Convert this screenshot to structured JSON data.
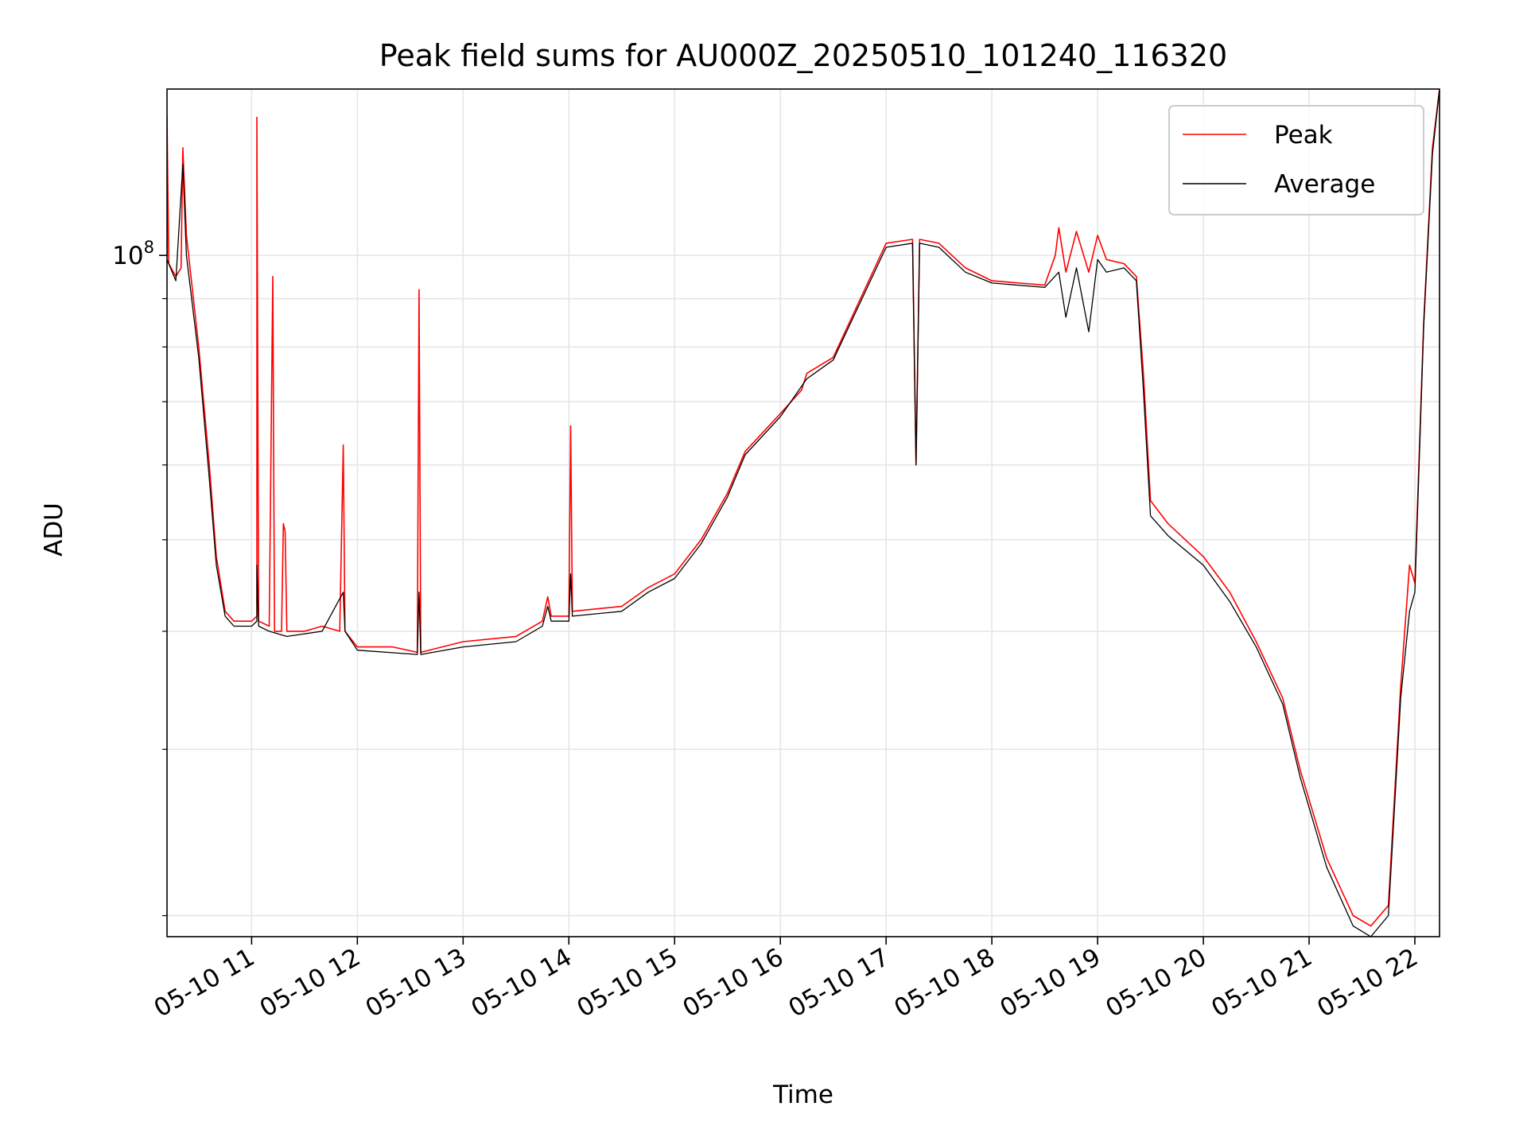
{
  "chart_data": {
    "type": "line",
    "title": "Peak field sums for AU000Z_20250510_101240_116320",
    "xlabel": "Time",
    "ylabel": "ADU",
    "y_scale": "log",
    "ylim": [
      19000000,
      150000000
    ],
    "xlim": [
      "2025-05-10 10:12",
      "2025-05-10 22:14"
    ],
    "grid": true,
    "legend_position": "upper right",
    "x_ticks": [
      "05-10 11",
      "05-10 12",
      "05-10 13",
      "05-10 14",
      "05-10 15",
      "05-10 16",
      "05-10 17",
      "05-10 18",
      "05-10 19",
      "05-10 20",
      "05-10 21",
      "05-10 22"
    ],
    "x_tick_times": [
      "2025-05-10 11:00",
      "2025-05-10 12:00",
      "2025-05-10 13:00",
      "2025-05-10 14:00",
      "2025-05-10 15:00",
      "2025-05-10 16:00",
      "2025-05-10 17:00",
      "2025-05-10 18:00",
      "2025-05-10 19:00",
      "2025-05-10 20:00",
      "2025-05-10 21:00",
      "2025-05-10 22:00"
    ],
    "y_ticks": [
      {
        "value": 100000000,
        "label": "10",
        "exponent": "8"
      }
    ],
    "y_minor_ticks": [
      20000000,
      30000000,
      40000000,
      50000000,
      60000000,
      70000000,
      80000000,
      90000000
    ],
    "series": [
      {
        "name": "Peak",
        "color": "#ff0000",
        "points": [
          [
            "2025-05-10 10:12",
            100000000
          ],
          [
            "2025-05-10 10:12",
            140000000
          ],
          [
            "2025-05-10 10:13",
            98000000
          ],
          [
            "2025-05-10 10:17",
            95000000
          ],
          [
            "2025-05-10 10:20",
            97000000
          ],
          [
            "2025-05-10 10:21",
            130000000
          ],
          [
            "2025-05-10 10:23",
            105000000
          ],
          [
            "2025-05-10 10:30",
            80000000
          ],
          [
            "2025-05-10 10:36",
            60000000
          ],
          [
            "2025-05-10 10:40",
            48000000
          ],
          [
            "2025-05-10 10:45",
            42000000
          ],
          [
            "2025-05-10 10:50",
            41000000
          ],
          [
            "2025-05-10 11:00",
            41000000
          ],
          [
            "2025-05-10 11:03",
            41500000
          ],
          [
            "2025-05-10 11:03",
            140000000
          ],
          [
            "2025-05-10 11:04",
            41000000
          ],
          [
            "2025-05-10 11:10",
            40500000
          ],
          [
            "2025-05-10 11:12",
            95000000
          ],
          [
            "2025-05-10 11:13",
            40000000
          ],
          [
            "2025-05-10 11:17",
            40000000
          ],
          [
            "2025-05-10 11:18",
            52000000
          ],
          [
            "2025-05-10 11:19",
            51000000
          ],
          [
            "2025-05-10 11:20",
            40000000
          ],
          [
            "2025-05-10 11:30",
            40000000
          ],
          [
            "2025-05-10 11:40",
            40500000
          ],
          [
            "2025-05-10 11:50",
            40000000
          ],
          [
            "2025-05-10 11:52",
            63000000
          ],
          [
            "2025-05-10 11:53",
            40000000
          ],
          [
            "2025-05-10 12:00",
            38500000
          ],
          [
            "2025-05-10 12:20",
            38500000
          ],
          [
            "2025-05-10 12:34",
            38000000
          ],
          [
            "2025-05-10 12:35",
            92000000
          ],
          [
            "2025-05-10 12:36",
            38000000
          ],
          [
            "2025-05-10 13:00",
            39000000
          ],
          [
            "2025-05-10 13:30",
            39500000
          ],
          [
            "2025-05-10 13:45",
            41000000
          ],
          [
            "2025-05-10 13:48",
            43500000
          ],
          [
            "2025-05-10 13:50",
            41500000
          ],
          [
            "2025-05-10 14:00",
            41500000
          ],
          [
            "2025-05-10 14:01",
            66000000
          ],
          [
            "2025-05-10 14:02",
            42000000
          ],
          [
            "2025-05-10 14:30",
            42500000
          ],
          [
            "2025-05-10 14:45",
            44500000
          ],
          [
            "2025-05-10 15:00",
            46000000
          ],
          [
            "2025-05-10 15:15",
            50000000
          ],
          [
            "2025-05-10 15:30",
            56000000
          ],
          [
            "2025-05-10 15:40",
            62000000
          ],
          [
            "2025-05-10 16:00",
            68000000
          ],
          [
            "2025-05-10 16:12",
            72000000
          ],
          [
            "2025-05-10 16:15",
            75000000
          ],
          [
            "2025-05-10 16:20",
            76000000
          ],
          [
            "2025-05-10 16:30",
            78000000
          ],
          [
            "2025-05-10 17:00",
            103000000
          ],
          [
            "2025-05-10 17:15",
            104000000
          ],
          [
            "2025-05-10 17:17",
            60000000
          ],
          [
            "2025-05-10 17:19",
            104000000
          ],
          [
            "2025-05-10 17:30",
            103000000
          ],
          [
            "2025-05-10 17:45",
            97000000
          ],
          [
            "2025-05-10 18:00",
            94000000
          ],
          [
            "2025-05-10 18:30",
            93000000
          ],
          [
            "2025-05-10 18:36",
            100000000
          ],
          [
            "2025-05-10 18:38",
            107000000
          ],
          [
            "2025-05-10 18:42",
            96000000
          ],
          [
            "2025-05-10 18:48",
            106000000
          ],
          [
            "2025-05-10 18:55",
            96000000
          ],
          [
            "2025-05-10 19:00",
            105000000
          ],
          [
            "2025-05-10 19:05",
            99000000
          ],
          [
            "2025-05-10 19:15",
            98000000
          ],
          [
            "2025-05-10 19:22",
            95000000
          ],
          [
            "2025-05-10 19:26",
            75000000
          ],
          [
            "2025-05-10 19:30",
            55000000
          ],
          [
            "2025-05-10 19:40",
            52000000
          ],
          [
            "2025-05-10 20:00",
            48000000
          ],
          [
            "2025-05-10 20:15",
            44000000
          ],
          [
            "2025-05-10 20:30",
            39000000
          ],
          [
            "2025-05-10 20:45",
            34000000
          ],
          [
            "2025-05-10 20:55",
            28500000
          ],
          [
            "2025-05-10 21:10",
            23000000
          ],
          [
            "2025-05-10 21:25",
            20000000
          ],
          [
            "2025-05-10 21:35",
            19500000
          ],
          [
            "2025-05-10 21:45",
            20500000
          ],
          [
            "2025-05-10 21:52",
            35000000
          ],
          [
            "2025-05-10 21:57",
            47000000
          ],
          [
            "2025-05-10 22:00",
            45000000
          ],
          [
            "2025-05-10 22:05",
            85000000
          ],
          [
            "2025-05-10 22:10",
            130000000
          ],
          [
            "2025-05-10 22:14",
            150000000
          ]
        ]
      },
      {
        "name": "Average",
        "color": "#000000",
        "points": [
          [
            "2025-05-10 10:12",
            99000000
          ],
          [
            "2025-05-10 10:17",
            94000000
          ],
          [
            "2025-05-10 10:21",
            125000000
          ],
          [
            "2025-05-10 10:23",
            100000000
          ],
          [
            "2025-05-10 10:30",
            78000000
          ],
          [
            "2025-05-10 10:36",
            58000000
          ],
          [
            "2025-05-10 10:40",
            47000000
          ],
          [
            "2025-05-10 10:45",
            41500000
          ],
          [
            "2025-05-10 10:50",
            40500000
          ],
          [
            "2025-05-10 11:00",
            40500000
          ],
          [
            "2025-05-10 11:03",
            41000000
          ],
          [
            "2025-05-10 11:03",
            47000000
          ],
          [
            "2025-05-10 11:04",
            40500000
          ],
          [
            "2025-05-10 11:10",
            40000000
          ],
          [
            "2025-05-10 11:20",
            39500000
          ],
          [
            "2025-05-10 11:40",
            40000000
          ],
          [
            "2025-05-10 11:52",
            44000000
          ],
          [
            "2025-05-10 11:53",
            40000000
          ],
          [
            "2025-05-10 12:00",
            38200000
          ],
          [
            "2025-05-10 12:34",
            37800000
          ],
          [
            "2025-05-10 12:35",
            44000000
          ],
          [
            "2025-05-10 12:36",
            37800000
          ],
          [
            "2025-05-10 13:00",
            38500000
          ],
          [
            "2025-05-10 13:30",
            39000000
          ],
          [
            "2025-05-10 13:45",
            40500000
          ],
          [
            "2025-05-10 13:48",
            42500000
          ],
          [
            "2025-05-10 13:50",
            41000000
          ],
          [
            "2025-05-10 14:00",
            41000000
          ],
          [
            "2025-05-10 14:01",
            46000000
          ],
          [
            "2025-05-10 14:02",
            41500000
          ],
          [
            "2025-05-10 14:30",
            42000000
          ],
          [
            "2025-05-10 14:45",
            44000000
          ],
          [
            "2025-05-10 15:00",
            45500000
          ],
          [
            "2025-05-10 15:15",
            49500000
          ],
          [
            "2025-05-10 15:30",
            55500000
          ],
          [
            "2025-05-10 15:40",
            61500000
          ],
          [
            "2025-05-10 16:00",
            67500000
          ],
          [
            "2025-05-10 16:15",
            74000000
          ],
          [
            "2025-05-10 16:30",
            77500000
          ],
          [
            "2025-05-10 17:00",
            102000000
          ],
          [
            "2025-05-10 17:15",
            103000000
          ],
          [
            "2025-05-10 17:17",
            60000000
          ],
          [
            "2025-05-10 17:19",
            103000000
          ],
          [
            "2025-05-10 17:30",
            102000000
          ],
          [
            "2025-05-10 17:45",
            96000000
          ],
          [
            "2025-05-10 18:00",
            93500000
          ],
          [
            "2025-05-10 18:30",
            92500000
          ],
          [
            "2025-05-10 18:38",
            96000000
          ],
          [
            "2025-05-10 18:42",
            86000000
          ],
          [
            "2025-05-10 18:48",
            97000000
          ],
          [
            "2025-05-10 18:55",
            83000000
          ],
          [
            "2025-05-10 19:00",
            99000000
          ],
          [
            "2025-05-10 19:05",
            96000000
          ],
          [
            "2025-05-10 19:15",
            97000000
          ],
          [
            "2025-05-10 19:22",
            94000000
          ],
          [
            "2025-05-10 19:26",
            72000000
          ],
          [
            "2025-05-10 19:30",
            53000000
          ],
          [
            "2025-05-10 19:40",
            50500000
          ],
          [
            "2025-05-10 20:00",
            47000000
          ],
          [
            "2025-05-10 20:15",
            43000000
          ],
          [
            "2025-05-10 20:30",
            38500000
          ],
          [
            "2025-05-10 20:45",
            33500000
          ],
          [
            "2025-05-10 20:55",
            28000000
          ],
          [
            "2025-05-10 21:10",
            22500000
          ],
          [
            "2025-05-10 21:25",
            19500000
          ],
          [
            "2025-05-10 21:35",
            19000000
          ],
          [
            "2025-05-10 21:45",
            20000000
          ],
          [
            "2025-05-10 21:52",
            34000000
          ],
          [
            "2025-05-10 21:57",
            42000000
          ],
          [
            "2025-05-10 22:00",
            44000000
          ],
          [
            "2025-05-10 22:05",
            84000000
          ],
          [
            "2025-05-10 22:10",
            128000000
          ],
          [
            "2025-05-10 22:14",
            150000000
          ]
        ]
      }
    ]
  }
}
